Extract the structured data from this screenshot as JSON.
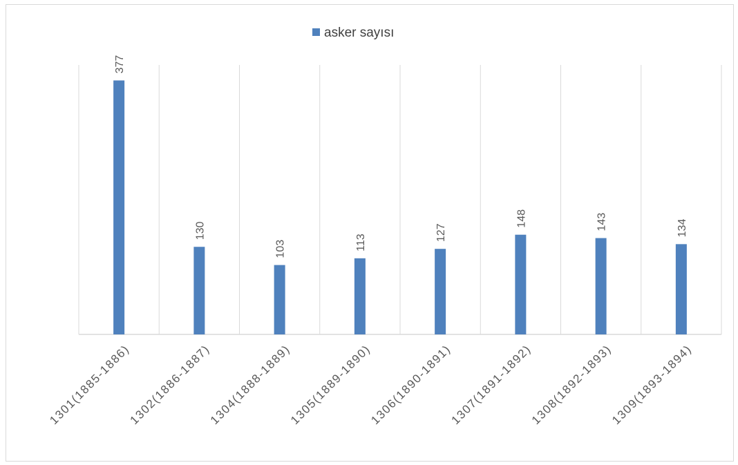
{
  "chart_data": {
    "type": "bar",
    "title": "",
    "xlabel": "",
    "ylabel": "",
    "categories": [
      "1301(1885-1886)",
      "1302(1886-1887)",
      "1304(1888-1889)",
      "1305(1889-1890)",
      "1306(1890-1891)",
      "1307(1891-1892)",
      "1308(1892-1893)",
      "1309(1893-1894)"
    ],
    "series": [
      {
        "name": "asker sayısı",
        "values": [
          377,
          130,
          103,
          113,
          127,
          148,
          143,
          134
        ],
        "color": "#4f81bd"
      }
    ],
    "ylim": [
      0,
      400
    ],
    "grid": "vertical",
    "legend": "top-center",
    "data_labels": true
  }
}
